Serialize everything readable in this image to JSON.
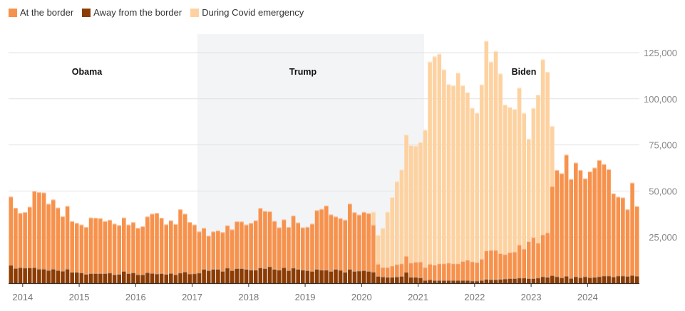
{
  "colors": {
    "at_border": "#f7924d",
    "away": "#8c3c02",
    "covid": "#fdd2a0",
    "trump_shade": "#f3f4f6"
  },
  "legend": [
    {
      "key": "at_border",
      "label": "At the border"
    },
    {
      "key": "away",
      "label": "Away from the border"
    },
    {
      "key": "covid",
      "label": "During Covid emergency"
    }
  ],
  "chart_data": {
    "type": "bar",
    "stacked": true,
    "title": "",
    "xlabel": "",
    "ylabel": "",
    "ylim": [
      0,
      137500
    ],
    "grid": true,
    "legend_position": "top-left",
    "x_start": "2013-10",
    "x_end": "2024-11",
    "x_interval": "month",
    "value_unit_multiplier": 1000,
    "x_tick_labels": [
      "2014",
      "2015",
      "2016",
      "2017",
      "2018",
      "2019",
      "2020",
      "2021",
      "2022",
      "2023",
      "2024"
    ],
    "y_ticks": [
      25000,
      50000,
      75000,
      100000,
      125000
    ],
    "y_tick_labels": [
      "25,000",
      "50,000",
      "75,000",
      "100,000",
      "125,000"
    ],
    "annotations": [
      {
        "label": "Obama",
        "period": "2013-10 to 2016-12"
      },
      {
        "label": "Trump",
        "period": "2017-01 to 2020-12",
        "shaded": true
      },
      {
        "label": "Biden",
        "period": "2021-01 to 2024-11"
      }
    ],
    "series": [
      {
        "name": "Away from the border",
        "key": "away",
        "values_thousands": [
          10.0,
          8.3,
          8.7,
          8.5,
          8.6,
          8.7,
          7.9,
          7.9,
          7.2,
          7.9,
          7.2,
          6.8,
          7.9,
          6.2,
          6.2,
          5.9,
          5.1,
          5.5,
          5.5,
          5.5,
          5.5,
          5.8,
          4.9,
          5.1,
          6.7,
          5.5,
          5.9,
          4.9,
          4.9,
          6.0,
          5.6,
          5.3,
          5.5,
          5.1,
          5.6,
          4.9,
          5.8,
          6.4,
          5.3,
          5.4,
          5.8,
          7.8,
          7.1,
          7.8,
          7.8,
          6.7,
          8.5,
          7.1,
          8.2,
          8.2,
          7.8,
          7.4,
          7.4,
          8.6,
          8.2,
          9.2,
          7.8,
          7.4,
          8.7,
          7.1,
          8.5,
          7.8,
          7.4,
          7.1,
          6.7,
          7.8,
          7.4,
          7.4,
          6.7,
          7.8,
          7.3,
          6.2,
          7.8,
          6.7,
          6.9,
          7.1,
          6.7,
          6.3,
          4.0,
          3.7,
          3.5,
          3.5,
          3.7,
          4.0,
          6.2,
          3.5,
          3.5,
          3.2,
          1.8,
          2.1,
          1.8,
          1.8,
          1.8,
          1.8,
          1.8,
          1.8,
          1.8,
          1.8,
          1.5,
          1.5,
          1.8,
          2.4,
          2.2,
          2.2,
          2.4,
          2.6,
          2.8,
          2.8,
          3.1,
          3.1,
          2.8,
          2.8,
          3.1,
          3.8,
          3.5,
          4.4,
          3.8,
          3.2,
          4.1,
          2.9,
          3.8,
          3.3,
          3.8,
          3.3,
          3.5,
          3.8,
          4.2,
          4.2,
          3.7,
          4.2,
          4.2,
          4.0,
          4.5,
          4.1
        ]
      },
      {
        "name": "At the border",
        "key": "at_border",
        "values_thousands": [
          37.0,
          32.6,
          29.4,
          30.1,
          32.9,
          41.3,
          41.5,
          41.3,
          35.9,
          37.5,
          33.8,
          29.5,
          34.0,
          27.5,
          26.5,
          25.9,
          25.4,
          30.1,
          30.0,
          29.8,
          28.2,
          28.6,
          27.4,
          26.4,
          28.9,
          26.3,
          27.2,
          25.1,
          26.0,
          30.2,
          32.1,
          32.8,
          30.0,
          26.8,
          28.5,
          27.2,
          34.3,
          31.3,
          27.9,
          26.4,
          22.3,
          22.2,
          18.7,
          20.3,
          20.8,
          21.0,
          22.9,
          22.1,
          25.4,
          25.3,
          24.0,
          25.3,
          26.7,
          32.2,
          31.0,
          29.8,
          26.0,
          22.9,
          25.9,
          23.4,
          28.2,
          25.1,
          22.9,
          23.5,
          25.6,
          31.8,
          32.9,
          34.7,
          30.6,
          28.4,
          28.0,
          28.2,
          35.4,
          31.8,
          30.3,
          31.6,
          31.3,
          25.5,
          6.6,
          5.1,
          5.3,
          6.1,
          6.7,
          6.8,
          8.7,
          7.7,
          8.2,
          8.6,
          7.0,
          8.5,
          8.3,
          9.0,
          9.0,
          9.4,
          9.0,
          9.0,
          10.3,
          11.0,
          10.4,
          10.0,
          11.5,
          15.4,
          15.9,
          15.9,
          13.9,
          13.2,
          14.1,
          14.4,
          17.9,
          15.7,
          20.0,
          22.2,
          18.9,
          22.7,
          24.1,
          48.3,
          57.6,
          56.4,
          65.6,
          53.6,
          61.6,
          58.1,
          53.0,
          57.3,
          59.2,
          63.0,
          60.4,
          57.6,
          45.0,
          42.7,
          42.3,
          36.1,
          50.0,
          37.7
        ]
      },
      {
        "name": "During Covid emergency",
        "key": "covid",
        "values_thousands": [
          0,
          0,
          0,
          0,
          0,
          0,
          0,
          0,
          0,
          0,
          0,
          0,
          0,
          0,
          0,
          0,
          0,
          0,
          0,
          0,
          0,
          0,
          0,
          0,
          0,
          0,
          0,
          0,
          0,
          0,
          0,
          0,
          0,
          0,
          0,
          0,
          0,
          0,
          0,
          0,
          0,
          0,
          0,
          0,
          0,
          0,
          0,
          0,
          0,
          0,
          0,
          0,
          0,
          0,
          0,
          0,
          0,
          0,
          0,
          0,
          0,
          0,
          0,
          0,
          0,
          0,
          0,
          0,
          0,
          0,
          0,
          0,
          0,
          0,
          0,
          0,
          0,
          7.0,
          15.6,
          21.2,
          30.0,
          37.1,
          44.9,
          50.9,
          65.7,
          63.7,
          62.9,
          64.7,
          74.4,
          109.5,
          112.9,
          113.6,
          105.1,
          96.7,
          96.5,
          103.3,
          95.2,
          90.7,
          83.2,
          80.9,
          94.4,
          113.6,
          102.0,
          107.8,
          97.4,
          81.0,
          78.6,
          77.2,
          85.0,
          73.5,
          55.5,
          70.0,
          80.2,
          94.9,
          87.0,
          32.5,
          0,
          0,
          0,
          0,
          0,
          0,
          0,
          0,
          0,
          0,
          0,
          0,
          0,
          0,
          0,
          0,
          0,
          0
        ]
      }
    ]
  }
}
